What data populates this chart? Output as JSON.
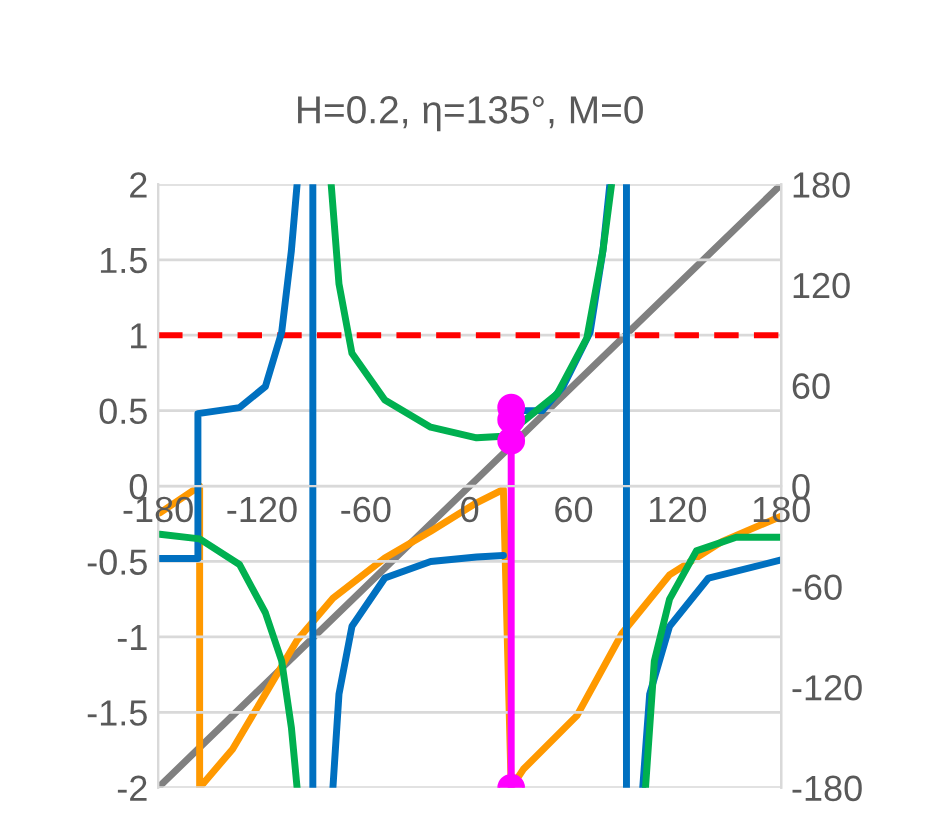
{
  "chart_data": {
    "type": "line",
    "title": "H=0.2, η=135°, M=0",
    "xlim": [
      -180,
      180
    ],
    "xticks": [
      -180,
      -120,
      -60,
      0,
      60,
      120,
      180
    ],
    "ylim": [
      -2,
      2
    ],
    "yticks": [
      -2,
      -1.5,
      -1,
      -0.5,
      0,
      0.5,
      1,
      1.5,
      2
    ],
    "y2lim": [
      -180,
      180
    ],
    "y2ticks": [
      -180,
      -120,
      -60,
      0,
      60,
      120,
      180
    ],
    "grid": "y",
    "legend": false,
    "line_style": "solid",
    "marker": "none",
    "series": [
      {
        "color": "#0070c0",
        "x": [
          -179,
          -157,
          -157,
          -133,
          -118,
          -108.6,
          -103,
          -99.7,
          null,
          -90.6,
          -90.6,
          null,
          -79,
          -75.5,
          -68,
          -49,
          -22.5,
          4,
          19.5,
          null,
          23.7,
          42,
          54,
          69.6,
          77,
          81,
          null,
          90.6,
          90.6,
          null,
          100,
          104,
          115.5,
          138,
          180
        ],
        "values": [
          -0.48,
          -0.48,
          0.48,
          0.52,
          0.66,
          1.02,
          1.56,
          2,
          null,
          2,
          -2,
          null,
          -2,
          -1.38,
          -0.93,
          -0.61,
          -0.5,
          -0.47,
          -0.46,
          null,
          0.5,
          0.5,
          0.66,
          1.02,
          1.56,
          2,
          null,
          2,
          -2,
          null,
          -2,
          -1.38,
          -0.93,
          -0.61,
          -0.49
        ]
      },
      {
        "color": "#00b050",
        "x": [
          -179,
          -156,
          -133,
          -118,
          -108.6,
          -103,
          -99.7,
          null,
          -80,
          -75.5,
          -68,
          -49,
          -22.5,
          4,
          19.5,
          31,
          50.5,
          67.7,
          77,
          82,
          null,
          101.6,
          106.7,
          115.5,
          131,
          154,
          180
        ],
        "values": [
          -0.32,
          -0.35,
          -0.52,
          -0.84,
          -1.16,
          -1.6,
          -2,
          null,
          2,
          1.34,
          0.88,
          0.57,
          0.39,
          0.32,
          0.33,
          0.43,
          0.61,
          0.98,
          1.56,
          2,
          null,
          -2,
          -1.16,
          -0.75,
          -0.43,
          -0.34,
          -0.34
        ]
      },
      {
        "color": "#808080",
        "axis": "y2",
        "x": [
          -180,
          180
        ],
        "values": [
          -180,
          180
        ]
      },
      {
        "color": "#ff9900",
        "axis": "y2",
        "x": [
          -179,
          -156,
          -156,
          -137,
          -118,
          -99.7,
          -79,
          -49,
          -22.5,
          4,
          19.5,
          24,
          31,
          62,
          88,
          115.5,
          146,
          180
        ],
        "values": [
          -16,
          0,
          -180,
          -157,
          -124,
          -92,
          -67,
          -43,
          -27,
          -10,
          -2,
          -180,
          -169,
          -137,
          -88,
          -53,
          -33,
          -18
        ]
      },
      {
        "color": "#ff00ff",
        "marker": "circle",
        "x": [
          24,
          24,
          24,
          24
        ],
        "values": [
          -2,
          0.3,
          0.44,
          0.52
        ]
      }
    ],
    "ref_lines": [
      {
        "axis": "y",
        "value": 1,
        "color": "#ff0000",
        "line_style": "dashed"
      }
    ]
  }
}
